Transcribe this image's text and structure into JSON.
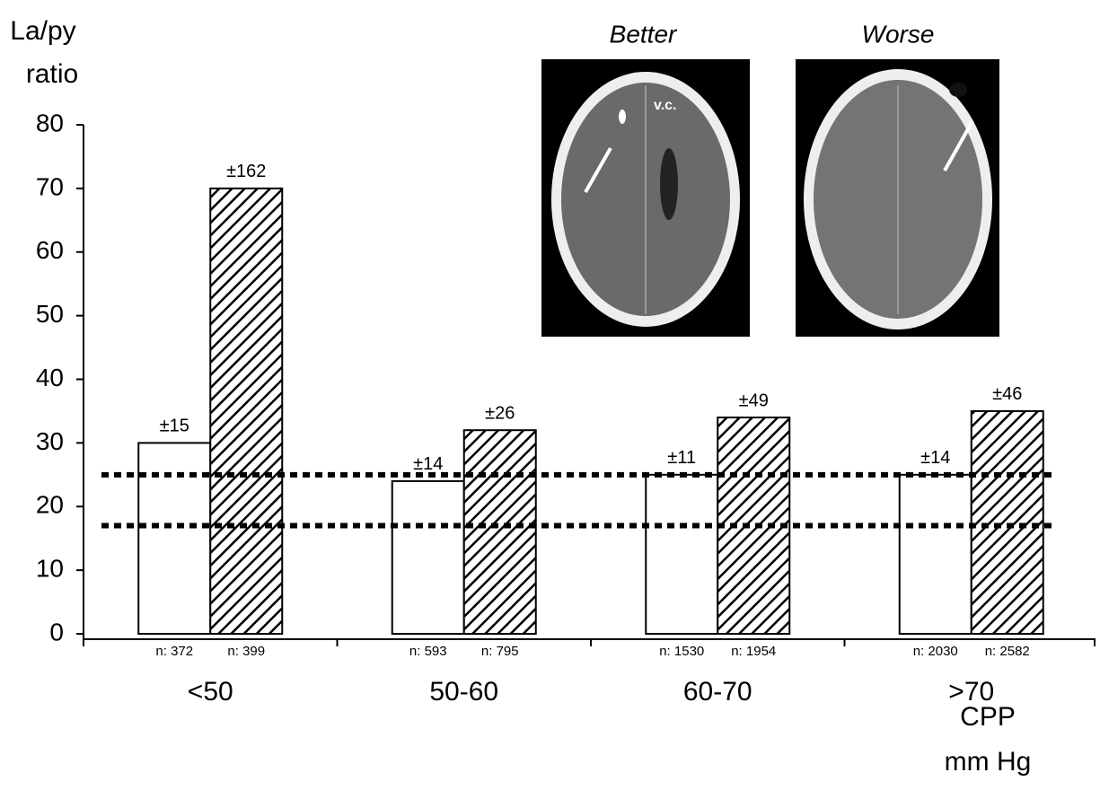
{
  "chart_data": {
    "type": "bar",
    "y_label_lines": [
      "La/py",
      "ratio"
    ],
    "x_label_lines": [
      "CPP",
      "mm Hg"
    ],
    "categories": [
      "<50",
      "50-60",
      "60-70",
      ">70"
    ],
    "series": [
      {
        "name": "Better",
        "color": "#ffffff",
        "values": [
          30,
          24,
          25,
          25
        ],
        "error_labels": [
          "±15",
          "±14",
          "±11",
          "±14"
        ],
        "n_labels": [
          "n: 372",
          "n: 593",
          "n: 1530",
          "n: 2030"
        ]
      },
      {
        "name": "Worse",
        "color": "#000000",
        "values": [
          70,
          32,
          34,
          35
        ],
        "error_labels": [
          "±162",
          "±26",
          "±49",
          "±46"
        ],
        "n_labels": [
          "n: 399",
          "n: 795",
          "n: 1954",
          "n: 2582"
        ]
      }
    ],
    "reference_lines": [
      25,
      17
    ],
    "ylim": [
      0,
      80
    ],
    "yticks": [
      0,
      10,
      20,
      30,
      40,
      50,
      60,
      70,
      80
    ],
    "image_labels": [
      "v.c."
    ]
  }
}
